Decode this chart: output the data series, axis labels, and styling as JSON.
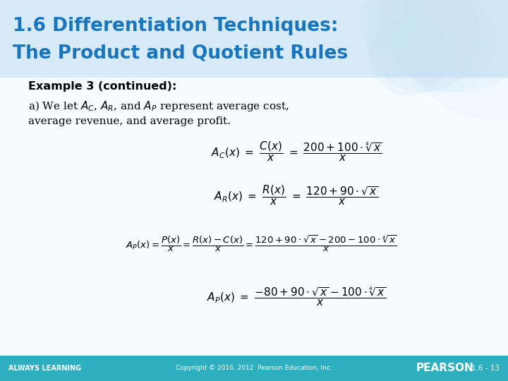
{
  "title_line1": "1.6 Differentiation Techniques:",
  "title_line2": "The Product and Quotient Rules",
  "title_color": "#1B75BC",
  "title_fontsize": 19,
  "header_bg": "#D6EAF8",
  "body_bg": "#F5FBFF",
  "footer_bg": "#2DAFC0",
  "footer_text_color": "#FFFFFF",
  "footer_left": "ALWAYS LEARNING",
  "footer_center": "Copyright © 2016, 2012  Pearson Education, Inc.",
  "footer_right": "PEARSON",
  "footer_page": "1.6 - 13",
  "example_text": "Example 3 (continued):",
  "body_text1": "a) We let $A_C$, $A_R$, and $A_P$ represent average cost,",
  "body_text2": "average revenue, and average profit."
}
